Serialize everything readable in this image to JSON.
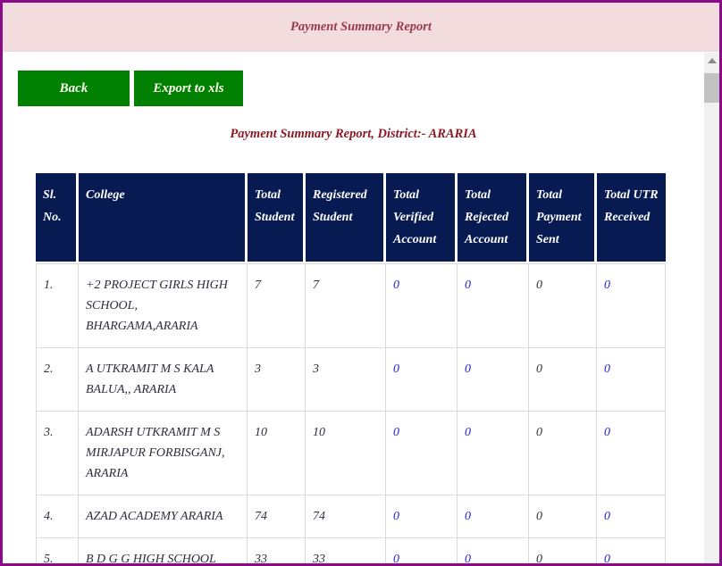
{
  "header": {
    "title": "Payment Summary Report"
  },
  "toolbar": {
    "back_label": "Back",
    "export_label": "Export to xls"
  },
  "report": {
    "subtitle": "Payment Summary Report, District:- ARARIA"
  },
  "table": {
    "columns": [
      "Sl. No.",
      "College",
      "Total Student",
      "Registered Student",
      "Total Verified Account",
      "Total Rejected Account",
      "Total Payment Sent",
      "Total UTR Received"
    ],
    "row_fields": [
      "sl",
      "college",
      "total_student",
      "registered_student",
      "verified_account",
      "rejected_account",
      "payment_sent",
      "utr_received"
    ],
    "link_fields": [
      "verified_account",
      "rejected_account",
      "utr_received"
    ],
    "rows": [
      {
        "sl": "1.",
        "college": "+2 PROJECT GIRLS HIGH SCHOOL, BHARGAMA,ARARIA",
        "total_student": "7",
        "registered_student": "7",
        "verified_account": "0",
        "rejected_account": "0",
        "payment_sent": "0",
        "utr_received": "0"
      },
      {
        "sl": "2.",
        "college": "A UTKRAMIT M S KALA BALUA,, ARARIA",
        "total_student": "3",
        "registered_student": "3",
        "verified_account": "0",
        "rejected_account": "0",
        "payment_sent": "0",
        "utr_received": "0"
      },
      {
        "sl": "3.",
        "college": "ADARSH UTKRAMIT M S MIRJAPUR FORBISGANJ, ARARIA",
        "total_student": "10",
        "registered_student": "10",
        "verified_account": "0",
        "rejected_account": "0",
        "payment_sent": "0",
        "utr_received": "0"
      },
      {
        "sl": "4.",
        "college": "AZAD ACADEMY ARARIA",
        "total_student": "74",
        "registered_student": "74",
        "verified_account": "0",
        "rejected_account": "0",
        "payment_sent": "0",
        "utr_received": "0"
      },
      {
        "sl": "5.",
        "college": "B D G G HIGH SCHOOL",
        "total_student": "33",
        "registered_student": "33",
        "verified_account": "0",
        "rejected_account": "0",
        "payment_sent": "0",
        "utr_received": "0"
      }
    ]
  },
  "icons": {
    "scroll_up": "triangle-up"
  },
  "colors": {
    "window_border": "#8a0a8a",
    "titlebar_bg": "#f2dcde",
    "title_text": "#9a3a4a",
    "subtitle_text": "#8b1a26",
    "table_header_bg": "#071b52",
    "table_header_text": "#ffffff",
    "body_text": "#2e2e3e",
    "link_blue": "#2222e0",
    "button_green": "#008000",
    "cell_border": "#d9d9d9",
    "scroll_track": "#f0f0f0",
    "scroll_thumb": "#c1c1c1"
  }
}
